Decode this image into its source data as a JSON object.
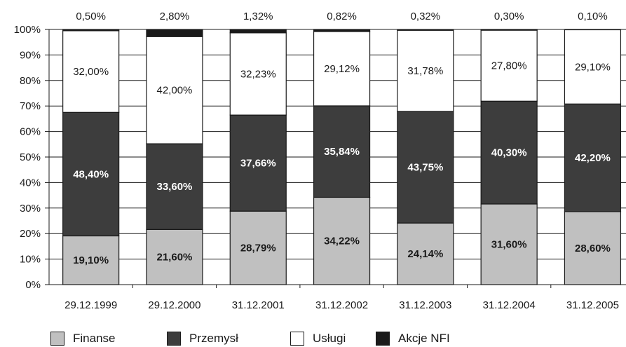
{
  "chart_data": {
    "type": "bar",
    "stacked": true,
    "categories": [
      "29.12.1999",
      "29.12.2000",
      "31.12.2001",
      "31.12.2002",
      "31.12.2003",
      "31.12.2004",
      "31.12.2005"
    ],
    "series": [
      {
        "name": "Finanse",
        "values": [
          19.1,
          21.6,
          28.79,
          34.22,
          24.14,
          31.6,
          28.6
        ],
        "labels": [
          "19,10%",
          "21,60%",
          "28,79%",
          "34,22%",
          "24,14%",
          "31,60%",
          "28,60%"
        ],
        "color": "#c0c0c0",
        "label_color": "#1a1a1a"
      },
      {
        "name": "Przemysł",
        "values": [
          48.4,
          33.6,
          37.66,
          35.84,
          43.75,
          40.3,
          42.2
        ],
        "labels": [
          "48,40%",
          "33,60%",
          "37,66%",
          "35,84%",
          "43,75%",
          "40,30%",
          "42,20%"
        ],
        "color": "#3d3d3d",
        "label_color": "#ffffff"
      },
      {
        "name": "Usługi",
        "values": [
          32.0,
          42.0,
          32.23,
          29.12,
          31.78,
          27.8,
          29.1
        ],
        "labels": [
          "32,00%",
          "42,00%",
          "32,23%",
          "29,12%",
          "31,78%",
          "27,80%",
          "29,10%"
        ],
        "color": "#ffffff",
        "label_color": "#1a1a1a"
      },
      {
        "name": "Akcje NFI",
        "values": [
          0.5,
          2.8,
          1.32,
          0.82,
          0.32,
          0.3,
          0.1
        ],
        "labels": [
          "0,50%",
          "2,80%",
          "1,32%",
          "0,82%",
          "0,32%",
          "0,30%",
          "0,10%"
        ],
        "color": "#1a1a1a",
        "label_color": "#1a1a1a"
      }
    ],
    "y_ticks": [
      "0%",
      "10%",
      "20%",
      "30%",
      "40%",
      "50%",
      "60%",
      "70%",
      "80%",
      "90%",
      "100%"
    ],
    "ylim": [
      0,
      100
    ],
    "grid": true,
    "legend_position": "bottom"
  }
}
